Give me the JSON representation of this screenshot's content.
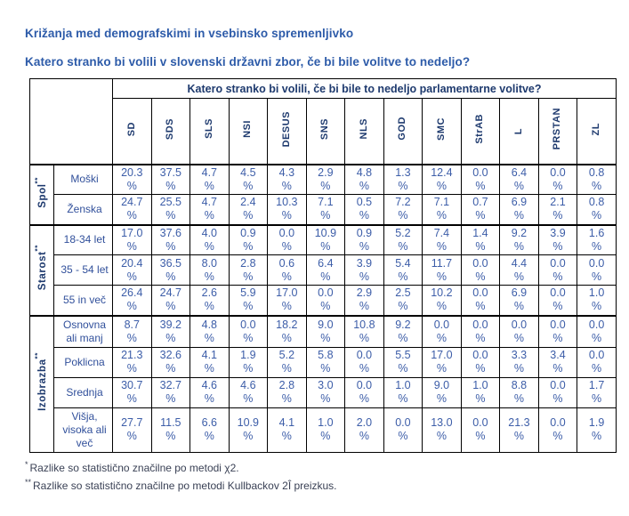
{
  "page": {
    "title1": "Križanja med demografskimi in vsebinsko spremenljivko",
    "title2": "Katero stranko bi volili v slovenski državni zbor, če bi bile volitve to nedeljo?"
  },
  "chart_data": {
    "type": "table",
    "title": "Katero stranko bi volili, če bi bile to nedeljo parlamentarne volitve?",
    "unit": "%",
    "columns": [
      "SD",
      "SDS",
      "SLS",
      "NSI",
      "DESUS",
      "SNS",
      "NLS",
      "GOD",
      "SMC",
      "StrAB",
      "L",
      "PRSTAN",
      "ZL"
    ],
    "row_groups": [
      {
        "label": "Spol",
        "marker": "**",
        "rows": [
          {
            "label": "Moški",
            "values": [
              "20.3",
              "37.5",
              "4.7",
              "4.5",
              "4.3",
              "2.9",
              "4.8",
              "1.3",
              "12.4",
              "0.0",
              "6.4",
              "0.0",
              "0.8"
            ]
          },
          {
            "label": "Ženska",
            "values": [
              "24.7",
              "25.5",
              "4.7",
              "2.4",
              "10.3",
              "7.1",
              "0.5",
              "7.2",
              "7.1",
              "0.7",
              "6.9",
              "2.1",
              "0.8"
            ]
          }
        ]
      },
      {
        "label": "Starost",
        "marker": "**",
        "rows": [
          {
            "label": "18-34 let",
            "values": [
              "17.0",
              "37.6",
              "4.0",
              "0.9",
              "0.0",
              "10.9",
              "0.9",
              "5.2",
              "7.4",
              "1.4",
              "9.2",
              "3.9",
              "1.6"
            ]
          },
          {
            "label": "35 - 54 let",
            "values": [
              "20.4",
              "36.5",
              "8.0",
              "2.8",
              "0.6",
              "6.4",
              "3.9",
              "5.4",
              "11.7",
              "0.0",
              "4.4",
              "0.0",
              "0.0"
            ]
          },
          {
            "label": "55 in več",
            "values": [
              "26.4",
              "24.7",
              "2.6",
              "5.9",
              "17.0",
              "0.0",
              "2.9",
              "2.5",
              "10.2",
              "0.0",
              "6.9",
              "0.0",
              "1.0"
            ]
          }
        ]
      },
      {
        "label": "Izobrazba",
        "marker": "**",
        "rows": [
          {
            "label": "Osnovna ali manj",
            "values": [
              "8.7",
              "39.2",
              "4.8",
              "0.0",
              "18.2",
              "9.0",
              "10.8",
              "9.2",
              "0.0",
              "0.0",
              "0.0",
              "0.0",
              "0.0"
            ]
          },
          {
            "label": "Poklicna",
            "values": [
              "21.3",
              "32.6",
              "4.1",
              "1.9",
              "5.2",
              "5.8",
              "0.0",
              "5.5",
              "17.0",
              "0.0",
              "3.3",
              "3.4",
              "0.0"
            ]
          },
          {
            "label": "Srednja",
            "values": [
              "30.7",
              "32.7",
              "4.6",
              "4.6",
              "2.8",
              "3.0",
              "0.0",
              "1.0",
              "9.0",
              "1.0",
              "8.8",
              "0.0",
              "1.7"
            ]
          },
          {
            "label": "Višja, visoka ali več",
            "values": [
              "27.7",
              "11.5",
              "6.6",
              "10.9",
              "4.1",
              "1.0",
              "2.0",
              "0.0",
              "13.0",
              "0.0",
              "21.3",
              "0.0",
              "1.9"
            ]
          }
        ]
      }
    ]
  },
  "footnotes": [
    {
      "marker": "*",
      "text": "Razlike so statistično značilne po metodi χ2."
    },
    {
      "marker": "**",
      "text": "Razlike so statistično značilne po metodi Kullbackov 2Î preizkus."
    }
  ],
  "colors": {
    "title_blue": "#2d5ba9",
    "header_navy": "#1e3a6e",
    "data_blue": "#3c5da8",
    "row_label_blue": "#31509b",
    "footnote_gray": "#3a4155",
    "border": "#000000",
    "background": "#ffffff"
  }
}
